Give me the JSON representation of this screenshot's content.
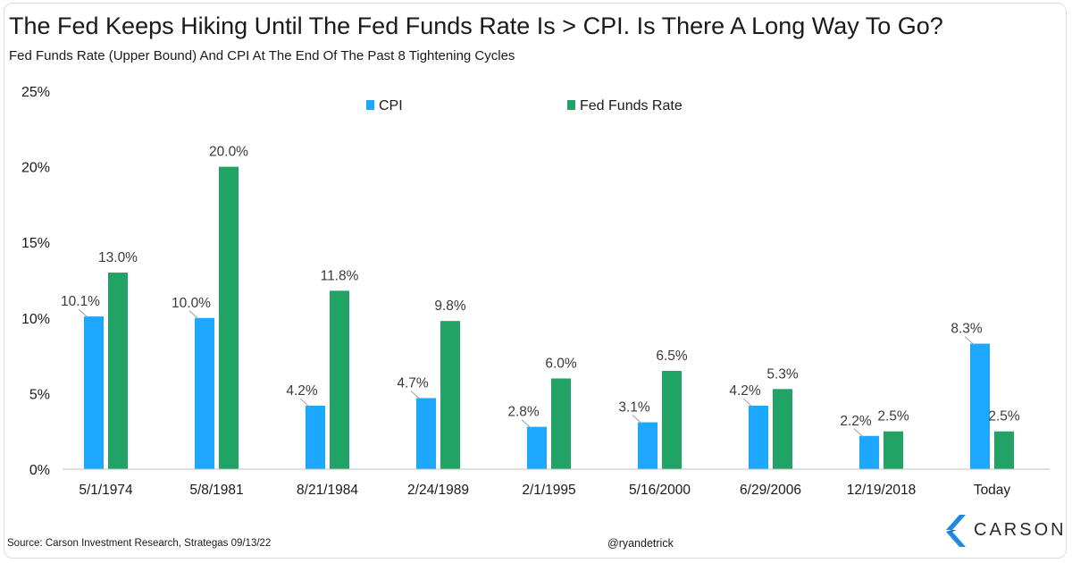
{
  "title": "The Fed Keeps Hiking Until The Fed Funds Rate Is > CPI. Is There A Long Way To Go?",
  "subtitle": "Fed Funds Rate (Upper Bound) And CPI At The End Of The Past 8 Tightening Cycles",
  "source": "Source: Carson Investment Research, Strategas 09/13/22",
  "handle": "@ryandetrick",
  "logo": {
    "text": "CARSON",
    "color": "#1e88e5"
  },
  "colors": {
    "cpi": "#1ea7ff",
    "ffr": "#21a366",
    "axis": "#bfbfbf",
    "leader": "#9e9e9e"
  },
  "chart_data": {
    "type": "bar",
    "categories": [
      "5/1/1974",
      "5/8/1981",
      "8/21/1984",
      "2/24/1989",
      "2/1/1995",
      "5/16/2000",
      "6/29/2006",
      "12/19/2018",
      "Today"
    ],
    "series": [
      {
        "name": "CPI",
        "values": [
          10.1,
          10.0,
          4.2,
          4.7,
          2.8,
          3.1,
          4.2,
          2.2,
          8.3
        ],
        "labels": [
          "10.1%",
          "10.0%",
          "4.2%",
          "4.7%",
          "2.8%",
          "3.1%",
          "4.2%",
          "2.2%",
          "8.3%"
        ]
      },
      {
        "name": "Fed Funds Rate",
        "values": [
          13.0,
          20.0,
          11.8,
          9.8,
          6.0,
          6.5,
          5.3,
          2.5,
          2.5
        ],
        "labels": [
          "13.0%",
          "20.0%",
          "11.8%",
          "9.8%",
          "6.0%",
          "6.5%",
          "5.3%",
          "2.5%",
          "2.5%"
        ]
      }
    ],
    "ylim": [
      0,
      25
    ],
    "yticks": [
      0,
      5,
      10,
      15,
      20,
      25
    ],
    "ytick_labels": [
      "0%",
      "5%",
      "10%",
      "15%",
      "20%",
      "25%"
    ],
    "legend": "top-center",
    "grid": false
  }
}
